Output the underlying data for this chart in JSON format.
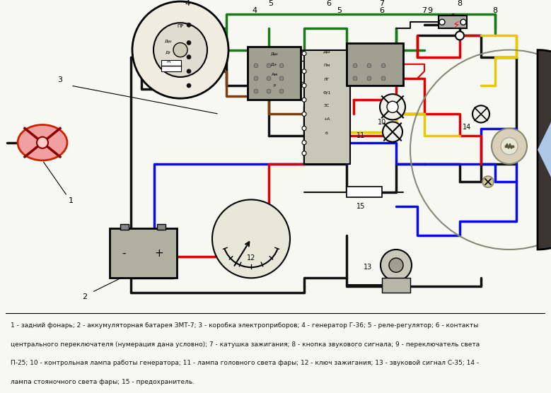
{
  "bg_color": "#f8f8f2",
  "caption_line1": "1 - задний фонарь; 2 - аккумуляторная батарея ЗМТ-7; 3 - коробка электроприборов; 4 - генератор Г-36; 5 - реле-регулятор; 6 - контакты",
  "caption_line2": "центрального переключателя (нумерация дана условно); 7 - катушка зажигания; 8 - кнопка звукового сигнала; 9 - переключатель света",
  "caption_line3": "П-25; 10 - контрольная лампа работы генератора; 11 - лампа головного света фары; 12 - ключ зажигания; 13 - звуковой сигнал С-35; 14 -",
  "caption_line4": "лампа стояночного света фары; 15 - предохранитель.",
  "wire_colors": {
    "black": "#111111",
    "green": "#1a7a1a",
    "brown": "#7a4010",
    "blue": "#0a0aee",
    "red": "#dd0000",
    "yellow": "#e8c800"
  }
}
